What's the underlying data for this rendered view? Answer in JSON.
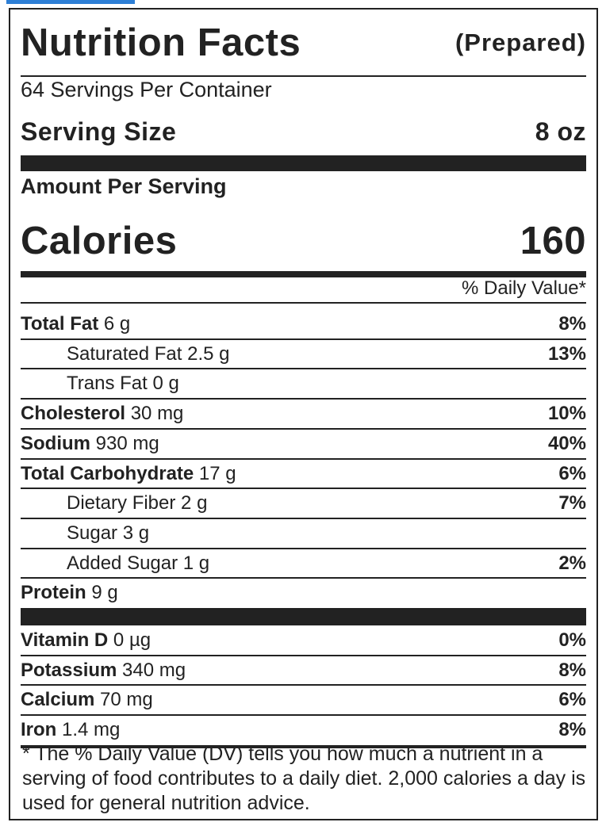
{
  "header": {
    "title": "Nutrition Facts",
    "variant": "(Prepared)"
  },
  "servings_per_container": "64 Servings Per Container",
  "serving_size": {
    "label": "Serving Size",
    "value": "8 oz"
  },
  "amount_per_serving": "Amount Per Serving",
  "calories": {
    "label": "Calories",
    "value": "160"
  },
  "daily_value_header": "% Daily Value*",
  "nutrients": [
    {
      "name": "Total Fat",
      "amount": "6 g",
      "dv": "8%"
    },
    {
      "name": "Saturated Fat",
      "amount": "2.5 g",
      "dv": "13%"
    },
    {
      "name": "Trans Fat",
      "amount": "0 g",
      "dv": ""
    },
    {
      "name": "Cholesterol",
      "amount": "30 mg",
      "dv": "10%"
    },
    {
      "name": "Sodium",
      "amount": "930 mg",
      "dv": "40%"
    },
    {
      "name": "Total Carbohydrate",
      "amount": "17 g",
      "dv": "6%"
    },
    {
      "name": "Dietary Fiber",
      "amount": "2 g",
      "dv": "7%"
    },
    {
      "name": "Sugar",
      "amount": "3 g",
      "dv": ""
    },
    {
      "name": "Added Sugar",
      "amount": "1 g",
      "dv": "2%"
    },
    {
      "name": "Protein",
      "amount": "9 g",
      "dv": ""
    }
  ],
  "vitamins": [
    {
      "name": "Vitamin D",
      "amount": "0 µg",
      "dv": "0%"
    },
    {
      "name": "Potassium",
      "amount": "340 mg",
      "dv": "8%"
    },
    {
      "name": "Calcium",
      "amount": "70 mg",
      "dv": "6%"
    },
    {
      "name": "Iron",
      "amount": "1.4 mg",
      "dv": "8%"
    }
  ],
  "footnote": "* The % Daily Value (DV) tells you how much a nutrient in a serving of food contributes to a daily diet. 2,000 calories a day is used for general nutrition advice."
}
